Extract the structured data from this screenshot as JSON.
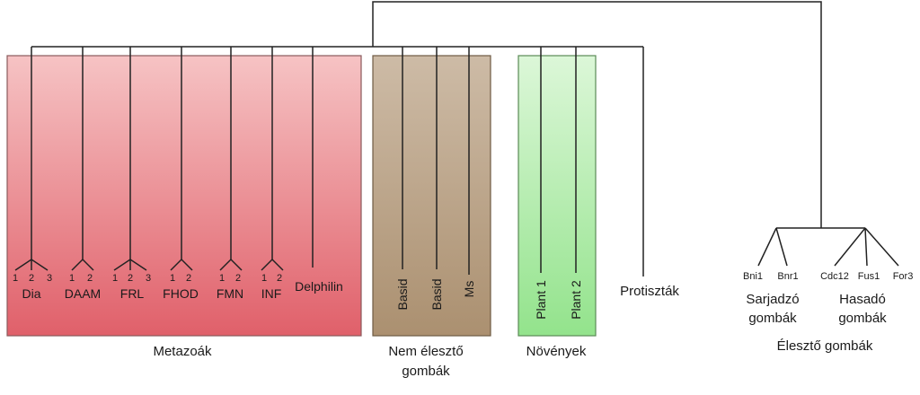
{
  "groups": {
    "metazoa": {
      "label": "Metazoák",
      "color": "#e8707a",
      "subgroups": [
        {
          "name": "Dia",
          "numbers": [
            "1",
            "2",
            "3"
          ]
        },
        {
          "name": "DAAM",
          "numbers": [
            "1",
            "2"
          ]
        },
        {
          "name": "FRL",
          "numbers": [
            "1",
            "2",
            "3"
          ]
        },
        {
          "name": "FHOD",
          "numbers": [
            "1",
            "2"
          ]
        },
        {
          "name": "FMN",
          "numbers": [
            "1",
            "2"
          ]
        },
        {
          "name": "INF",
          "numbers": [
            "1",
            "2"
          ]
        },
        {
          "name": "Delphilin",
          "numbers": []
        }
      ]
    },
    "fungi": {
      "label_line1": "Nem élesztő",
      "label_line2": "gombák",
      "color": "#b29a7c",
      "leaves": [
        "Basid",
        "Basid",
        "Ms"
      ]
    },
    "plants": {
      "label": "Növények",
      "color": "#9fe89a",
      "leaves": [
        "Plant 1",
        "Plant 2"
      ]
    },
    "protists": {
      "label": "Protiszták"
    },
    "yeasts": {
      "label": "Élesztő gombák",
      "budding": {
        "line1": "Sarjadzó",
        "line2": "gombák",
        "leaves": [
          "Bni1",
          "Bnr1"
        ]
      },
      "fission": {
        "line1": "Hasadó",
        "line2": "gombák",
        "leaves": [
          "Cdc12",
          "Fus1",
          "For3"
        ]
      }
    }
  }
}
